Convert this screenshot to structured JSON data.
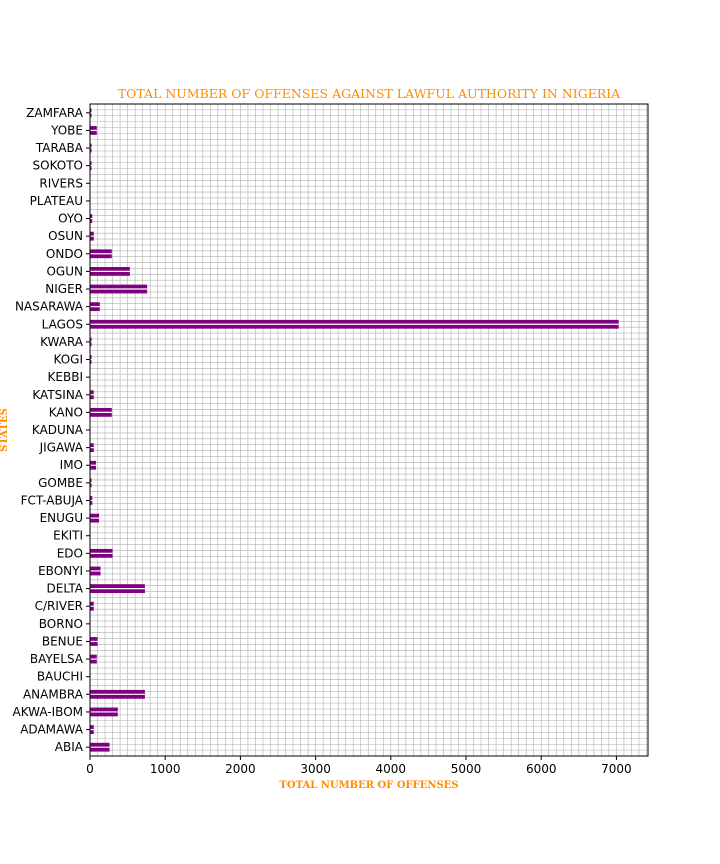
{
  "chart_data": {
    "type": "bar",
    "orientation": "horizontal",
    "title": "TOTAL NUMBER OF OFFENSES AGAINST LAWFUL AUTHORITY IN NIGERIA",
    "xlabel": "TOTAL NUMBER OF OFFENSES",
    "ylabel": "STATES",
    "xlim": [
      0,
      7420
    ],
    "xticks": [
      "0",
      "1000",
      "2000",
      "3000",
      "4000",
      "5000",
      "6000",
      "7000"
    ],
    "grid": true,
    "categories": [
      "ABIA",
      "ADAMAWA",
      "AKWA-IBOM",
      "ANAMBRA",
      "BAUCHI",
      "BAYELSA",
      "BENUE",
      "BORNO",
      "C/RIVER",
      "DELTA",
      "EBONYI",
      "EDO",
      "EKITI",
      "ENUGU",
      "FCT-ABUJA",
      "GOMBE",
      "IMO",
      "JIGAWA",
      "KADUNA",
      "KANO",
      "KATSINA",
      "KEBBI",
      "KOGI",
      "KWARA",
      "LAGOS",
      "NASARAWA",
      "NIGER",
      "OGUN",
      "ONDO",
      "OSUN",
      "OYO",
      "PLATEAU",
      "RIVERS",
      "SOKOTO",
      "TARABA",
      "YOBE",
      "ZAMFARA"
    ],
    "values": [
      260,
      50,
      370,
      730,
      0,
      90,
      100,
      0,
      50,
      730,
      140,
      300,
      0,
      120,
      30,
      20,
      80,
      50,
      0,
      290,
      50,
      0,
      20,
      20,
      7030,
      130,
      760,
      530,
      290,
      50,
      30,
      0,
      0,
      20,
      20,
      90,
      20
    ],
    "colors": {
      "bar": "#800080",
      "bar_stripe": "#ffffff",
      "text_accent": "#ff8c00",
      "grid": "#b0b0b0"
    }
  }
}
